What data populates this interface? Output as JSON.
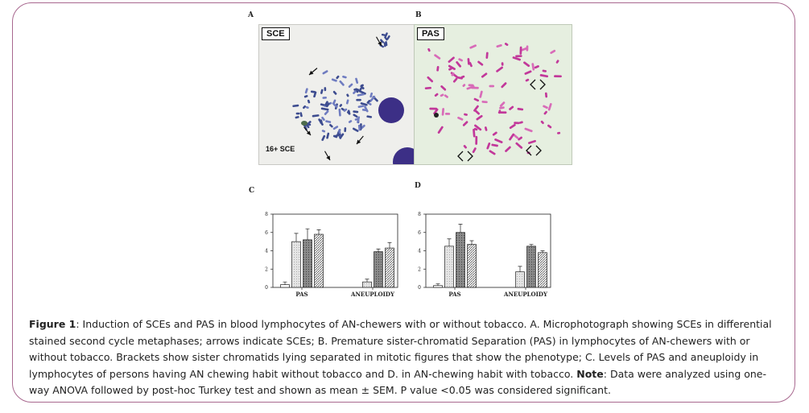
{
  "panels": {
    "a_letter": "A",
    "b_letter": "B",
    "c_letter": "C",
    "d_letter": "D",
    "a_stain_label": "SCE",
    "a_count_label": "16+ SCE",
    "b_stain_label": "PAS"
  },
  "colors": {
    "frame": "#a8688f",
    "chromosome_a": "#3d4c8f",
    "chromosome_b": "#c2389a",
    "nucleus": "#3c2f86"
  },
  "chart_data": [
    {
      "type": "bar",
      "panel": "C",
      "categories": [
        "PAS",
        "ANEUPLOIDY"
      ],
      "ylim": [
        0,
        8
      ],
      "yticks": [
        0,
        2,
        4,
        6,
        8
      ],
      "series": [
        {
          "pattern": "open",
          "values": [
            0.3,
            null
          ],
          "errors": [
            0.3,
            null
          ]
        },
        {
          "pattern": "light-dotted",
          "values": [
            5.0,
            0.6
          ],
          "errors": [
            0.9,
            0.3
          ]
        },
        {
          "pattern": "dark-dotted",
          "values": [
            5.2,
            3.9
          ],
          "errors": [
            1.2,
            0.3
          ]
        },
        {
          "pattern": "hatched",
          "values": [
            5.8,
            4.3
          ],
          "errors": [
            0.5,
            0.6
          ]
        }
      ]
    },
    {
      "type": "bar",
      "panel": "D",
      "categories": [
        "PAS",
        "ANEUPLOIDY"
      ],
      "ylim": [
        0,
        8
      ],
      "yticks": [
        0,
        2,
        4,
        6,
        8
      ],
      "series": [
        {
          "pattern": "open",
          "values": [
            0.2,
            null
          ],
          "errors": [
            0.2,
            null
          ]
        },
        {
          "pattern": "light-dotted",
          "values": [
            4.5,
            1.7
          ],
          "errors": [
            0.8,
            0.6
          ]
        },
        {
          "pattern": "dark-dotted",
          "values": [
            6.0,
            4.5
          ],
          "errors": [
            0.9,
            0.2
          ]
        },
        {
          "pattern": "hatched",
          "values": [
            4.7,
            3.8
          ],
          "errors": [
            0.4,
            0.2
          ]
        }
      ]
    }
  ],
  "caption": {
    "figure_label": "Figure 1",
    "part1": ": Induction of SCEs and PAS in blood lymphocytes of AN-chewers with or without tobacco. A. Microphotograph showing SCEs in differential stained second cycle metaphases; arrows indicate SCEs; B. Premature sister-chromatid Separation (PAS) in lymphocytes of AN-chewers with or without tobacco. Brackets show sister chromatids lying separated in mitotic figures that show the phenotype; C. Levels of PAS and aneuploidy in lymphocytes of persons having AN chewing habit without tobacco and D. in AN-chewing habit with tobacco.",
    "note_label": "Note",
    "part2": ": Data were analyzed using one-way ANOVA followed by post-hoc Turkey test and shown as mean ± SEM. P value <0.05 was considered significant."
  }
}
